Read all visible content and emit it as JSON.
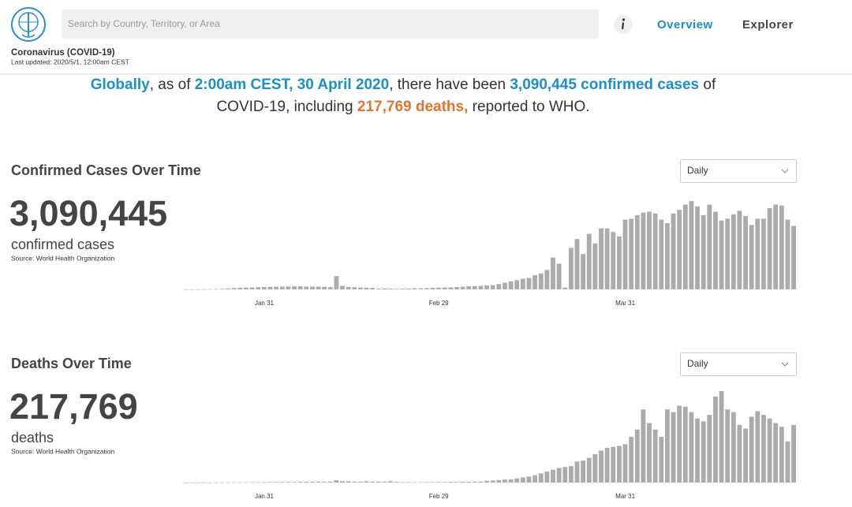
{
  "header": {
    "search_placeholder": "Search by Country, Territory, or Area",
    "nav": [
      "Overview",
      "Explorer"
    ],
    "title": "Coronavirus (COVID-19)",
    "last_updated": "Last updated: 2020/5/1, 12:00am CEST"
  },
  "summary": {
    "lines": [
      [
        {
          "text": "Globally",
          "color": "#1a8fc9"
        },
        {
          "text": ", as of "
        },
        {
          "text": "2:00am CEST, 30 April 2020",
          "color": "#1a8fc9"
        },
        {
          "text": ", there have been "
        },
        {
          "text": "3,090,445 confirmed cases",
          "color": "#1a8fc9"
        },
        {
          "text": " of"
        }
      ],
      [
        {
          "text": "COVID-19, including "
        },
        {
          "text": "217,769 deaths,",
          "color": "#e0752b"
        },
        {
          "text": " reported to WHO."
        }
      ]
    ]
  },
  "chart_data": [
    {
      "type": "bar",
      "title": "Confirmed Cases Over Time",
      "total": "3,090,445",
      "total_label": "confirmed cases",
      "source": "Source: World Health Organization",
      "interval": "Daily",
      "color": "#ababab",
      "categories": [
        null,
        null,
        null,
        null,
        null,
        null,
        null,
        null,
        null,
        null,
        null,
        null,
        null,
        "Jan 31",
        null,
        null,
        null,
        null,
        null,
        null,
        null,
        null,
        null,
        null,
        null,
        null,
        null,
        null,
        null,
        null,
        null,
        null,
        null,
        null,
        null,
        null,
        null,
        null,
        null,
        null,
        null,
        null,
        "Feb 29",
        null,
        null,
        null,
        null,
        null,
        null,
        null,
        null,
        null,
        null,
        null,
        null,
        null,
        null,
        null,
        null,
        null,
        null,
        null,
        null,
        null,
        null,
        null,
        null,
        null,
        null,
        null,
        null,
        null,
        null,
        "Mar 31",
        null,
        null,
        null,
        null,
        null,
        null,
        null,
        null,
        null,
        null,
        null,
        null,
        null,
        null,
        null,
        null,
        null,
        null,
        null,
        null,
        null,
        null,
        null,
        null,
        null,
        null,
        null,
        null
      ],
      "values": [
        50,
        100,
        150,
        200,
        300,
        450,
        700,
        1100,
        1500,
        1800,
        2000,
        2200,
        2500,
        2600,
        2800,
        3000,
        3200,
        3300,
        3400,
        3500,
        3200,
        3000,
        3100,
        2900,
        2500,
        15000,
        4000,
        2700,
        2500,
        2100,
        1900,
        1700,
        800,
        1000,
        900,
        700,
        800,
        900,
        1200,
        1300,
        1400,
        1800,
        2000,
        2100,
        2300,
        2500,
        3000,
        3500,
        3800,
        4000,
        4500,
        4700,
        6000,
        7500,
        9000,
        10500,
        12000,
        13000,
        16000,
        18000,
        22000,
        36000,
        29000,
        2000,
        47000,
        57000,
        40000,
        63000,
        52000,
        69000,
        69000,
        65000,
        60000,
        79000,
        80000,
        84000,
        87000,
        88000,
        86000,
        79000,
        75000,
        86000,
        90000,
        96000,
        100000,
        94000,
        84000,
        96000,
        88000,
        78000,
        80000,
        85000,
        89000,
        83000,
        73000,
        80000,
        80000,
        92000,
        96000,
        95000,
        79000,
        72000
      ],
      "ylim": [
        0,
        100000
      ]
    },
    {
      "type": "bar",
      "title": "Deaths Over Time",
      "total": "217,769",
      "total_label": "deaths",
      "source": "Source: World Health Organization",
      "interval": "Daily",
      "color": "#ababab",
      "categories": [
        null,
        null,
        null,
        null,
        null,
        null,
        null,
        null,
        null,
        null,
        null,
        null,
        null,
        "Jan 31",
        null,
        null,
        null,
        null,
        null,
        null,
        null,
        null,
        null,
        null,
        null,
        null,
        null,
        null,
        null,
        null,
        null,
        null,
        null,
        null,
        null,
        null,
        null,
        null,
        null,
        null,
        null,
        null,
        "Feb 29",
        null,
        null,
        null,
        null,
        null,
        null,
        null,
        null,
        null,
        null,
        null,
        null,
        null,
        null,
        null,
        null,
        null,
        null,
        null,
        null,
        null,
        null,
        null,
        null,
        null,
        null,
        null,
        null,
        null,
        null,
        "Mar 31",
        null,
        null,
        null,
        null,
        null,
        null,
        null,
        null,
        null,
        null,
        null,
        null,
        null,
        null,
        null,
        null,
        null,
        null,
        null,
        null,
        null,
        null,
        null,
        null,
        null,
        null,
        null,
        null
      ],
      "values": [
        0,
        2,
        3,
        5,
        8,
        15,
        15,
        20,
        25,
        26,
        38,
        43,
        46,
        45,
        57,
        64,
        66,
        73,
        73,
        86,
        89,
        97,
        108,
        97,
        103,
        250,
        140,
        145,
        105,
        100,
        140,
        100,
        110,
        98,
        150,
        70,
        50,
        58,
        45,
        40,
        55,
        60,
        65,
        55,
        70,
        80,
        85,
        95,
        100,
        110,
        200,
        220,
        280,
        330,
        350,
        450,
        550,
        650,
        800,
        1000,
        1200,
        1400,
        1600,
        1700,
        1800,
        2300,
        2400,
        2700,
        3100,
        3500,
        3800,
        3900,
        4000,
        4200,
        5000,
        5800,
        8000,
        6500,
        5800,
        5000,
        8000,
        7700,
        8400,
        8300,
        7700,
        7000,
        6700,
        7400,
        9400,
        10000,
        8000,
        7700,
        6300,
        5900,
        7200,
        7800,
        7400,
        7000,
        6500,
        6100,
        4500,
        6300
      ],
      "ylim": [
        0,
        10000
      ]
    }
  ]
}
